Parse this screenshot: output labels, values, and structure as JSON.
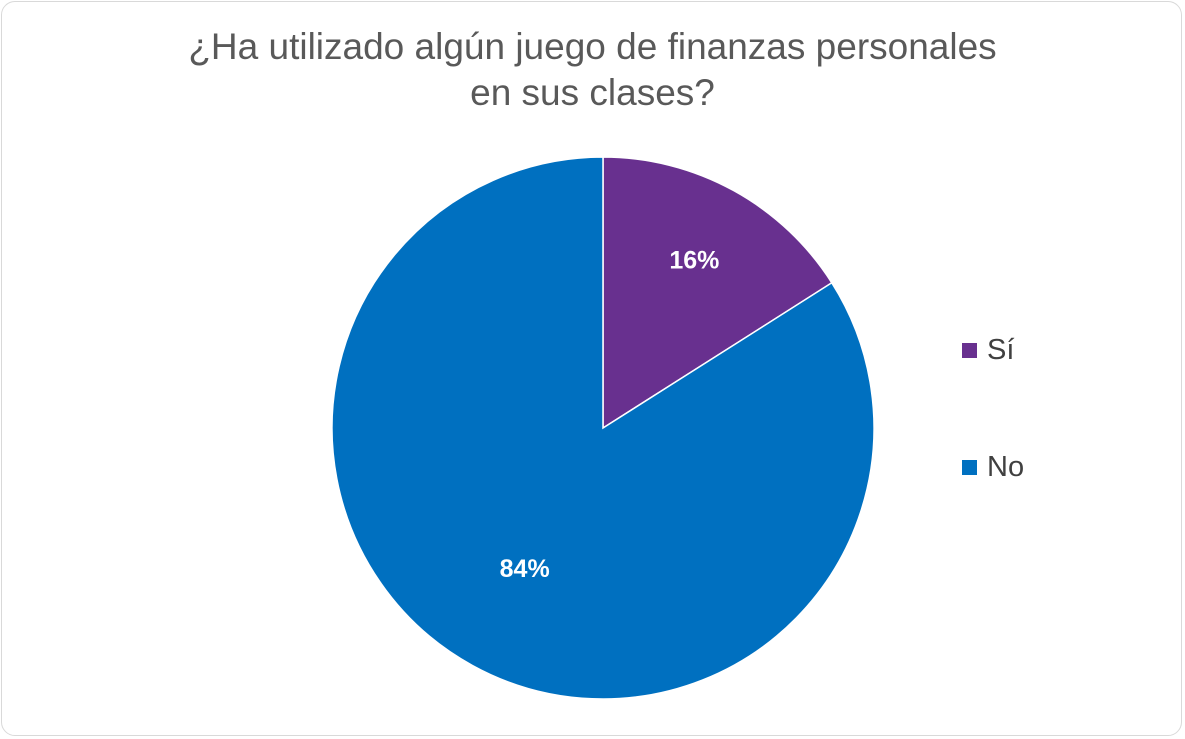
{
  "chart_data": {
    "type": "pie",
    "title_lines": [
      "¿Ha utilizado algún juego de finanzas personales",
      "en sus clases?"
    ],
    "categories": [
      "Sí",
      "No"
    ],
    "values": [
      16,
      84
    ],
    "data_labels": [
      "16%",
      "84%"
    ],
    "colors": [
      "#68308F",
      "#0070C0"
    ],
    "legend": "right",
    "start_angle": "12 o'clock, clockwise"
  }
}
